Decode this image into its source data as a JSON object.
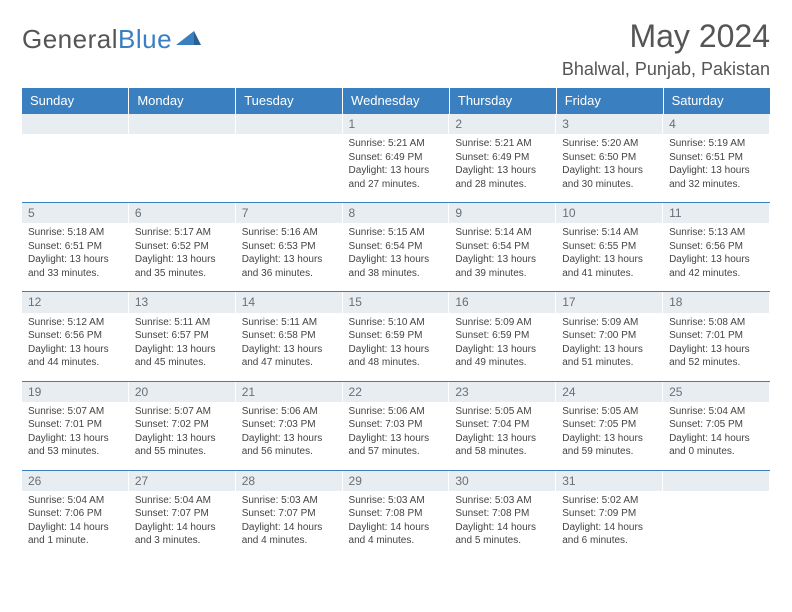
{
  "logo": {
    "part1": "General",
    "part2": "Blue"
  },
  "title": "May 2024",
  "location": "Bhalwal, Punjab, Pakistan",
  "colors": {
    "accent": "#3a7fbf",
    "daynum_bg": "#e8edf1",
    "text": "#444444"
  },
  "weekdays": [
    "Sunday",
    "Monday",
    "Tuesday",
    "Wednesday",
    "Thursday",
    "Friday",
    "Saturday"
  ],
  "weeks": [
    [
      {
        "n": "",
        "lines": []
      },
      {
        "n": "",
        "lines": []
      },
      {
        "n": "",
        "lines": []
      },
      {
        "n": "1",
        "lines": [
          "Sunrise: 5:21 AM",
          "Sunset: 6:49 PM",
          "Daylight: 13 hours and 27 minutes."
        ]
      },
      {
        "n": "2",
        "lines": [
          "Sunrise: 5:21 AM",
          "Sunset: 6:49 PM",
          "Daylight: 13 hours and 28 minutes."
        ]
      },
      {
        "n": "3",
        "lines": [
          "Sunrise: 5:20 AM",
          "Sunset: 6:50 PM",
          "Daylight: 13 hours and 30 minutes."
        ]
      },
      {
        "n": "4",
        "lines": [
          "Sunrise: 5:19 AM",
          "Sunset: 6:51 PM",
          "Daylight: 13 hours and 32 minutes."
        ]
      }
    ],
    [
      {
        "n": "5",
        "lines": [
          "Sunrise: 5:18 AM",
          "Sunset: 6:51 PM",
          "Daylight: 13 hours and 33 minutes."
        ]
      },
      {
        "n": "6",
        "lines": [
          "Sunrise: 5:17 AM",
          "Sunset: 6:52 PM",
          "Daylight: 13 hours and 35 minutes."
        ]
      },
      {
        "n": "7",
        "lines": [
          "Sunrise: 5:16 AM",
          "Sunset: 6:53 PM",
          "Daylight: 13 hours and 36 minutes."
        ]
      },
      {
        "n": "8",
        "lines": [
          "Sunrise: 5:15 AM",
          "Sunset: 6:54 PM",
          "Daylight: 13 hours and 38 minutes."
        ]
      },
      {
        "n": "9",
        "lines": [
          "Sunrise: 5:14 AM",
          "Sunset: 6:54 PM",
          "Daylight: 13 hours and 39 minutes."
        ]
      },
      {
        "n": "10",
        "lines": [
          "Sunrise: 5:14 AM",
          "Sunset: 6:55 PM",
          "Daylight: 13 hours and 41 minutes."
        ]
      },
      {
        "n": "11",
        "lines": [
          "Sunrise: 5:13 AM",
          "Sunset: 6:56 PM",
          "Daylight: 13 hours and 42 minutes."
        ]
      }
    ],
    [
      {
        "n": "12",
        "lines": [
          "Sunrise: 5:12 AM",
          "Sunset: 6:56 PM",
          "Daylight: 13 hours and 44 minutes."
        ]
      },
      {
        "n": "13",
        "lines": [
          "Sunrise: 5:11 AM",
          "Sunset: 6:57 PM",
          "Daylight: 13 hours and 45 minutes."
        ]
      },
      {
        "n": "14",
        "lines": [
          "Sunrise: 5:11 AM",
          "Sunset: 6:58 PM",
          "Daylight: 13 hours and 47 minutes."
        ]
      },
      {
        "n": "15",
        "lines": [
          "Sunrise: 5:10 AM",
          "Sunset: 6:59 PM",
          "Daylight: 13 hours and 48 minutes."
        ]
      },
      {
        "n": "16",
        "lines": [
          "Sunrise: 5:09 AM",
          "Sunset: 6:59 PM",
          "Daylight: 13 hours and 49 minutes."
        ]
      },
      {
        "n": "17",
        "lines": [
          "Sunrise: 5:09 AM",
          "Sunset: 7:00 PM",
          "Daylight: 13 hours and 51 minutes."
        ]
      },
      {
        "n": "18",
        "lines": [
          "Sunrise: 5:08 AM",
          "Sunset: 7:01 PM",
          "Daylight: 13 hours and 52 minutes."
        ]
      }
    ],
    [
      {
        "n": "19",
        "lines": [
          "Sunrise: 5:07 AM",
          "Sunset: 7:01 PM",
          "Daylight: 13 hours and 53 minutes."
        ]
      },
      {
        "n": "20",
        "lines": [
          "Sunrise: 5:07 AM",
          "Sunset: 7:02 PM",
          "Daylight: 13 hours and 55 minutes."
        ]
      },
      {
        "n": "21",
        "lines": [
          "Sunrise: 5:06 AM",
          "Sunset: 7:03 PM",
          "Daylight: 13 hours and 56 minutes."
        ]
      },
      {
        "n": "22",
        "lines": [
          "Sunrise: 5:06 AM",
          "Sunset: 7:03 PM",
          "Daylight: 13 hours and 57 minutes."
        ]
      },
      {
        "n": "23",
        "lines": [
          "Sunrise: 5:05 AM",
          "Sunset: 7:04 PM",
          "Daylight: 13 hours and 58 minutes."
        ]
      },
      {
        "n": "24",
        "lines": [
          "Sunrise: 5:05 AM",
          "Sunset: 7:05 PM",
          "Daylight: 13 hours and 59 minutes."
        ]
      },
      {
        "n": "25",
        "lines": [
          "Sunrise: 5:04 AM",
          "Sunset: 7:05 PM",
          "Daylight: 14 hours and 0 minutes."
        ]
      }
    ],
    [
      {
        "n": "26",
        "lines": [
          "Sunrise: 5:04 AM",
          "Sunset: 7:06 PM",
          "Daylight: 14 hours and 1 minute."
        ]
      },
      {
        "n": "27",
        "lines": [
          "Sunrise: 5:04 AM",
          "Sunset: 7:07 PM",
          "Daylight: 14 hours and 3 minutes."
        ]
      },
      {
        "n": "28",
        "lines": [
          "Sunrise: 5:03 AM",
          "Sunset: 7:07 PM",
          "Daylight: 14 hours and 4 minutes."
        ]
      },
      {
        "n": "29",
        "lines": [
          "Sunrise: 5:03 AM",
          "Sunset: 7:08 PM",
          "Daylight: 14 hours and 4 minutes."
        ]
      },
      {
        "n": "30",
        "lines": [
          "Sunrise: 5:03 AM",
          "Sunset: 7:08 PM",
          "Daylight: 14 hours and 5 minutes."
        ]
      },
      {
        "n": "31",
        "lines": [
          "Sunrise: 5:02 AM",
          "Sunset: 7:09 PM",
          "Daylight: 14 hours and 6 minutes."
        ]
      },
      {
        "n": "",
        "lines": []
      }
    ]
  ]
}
